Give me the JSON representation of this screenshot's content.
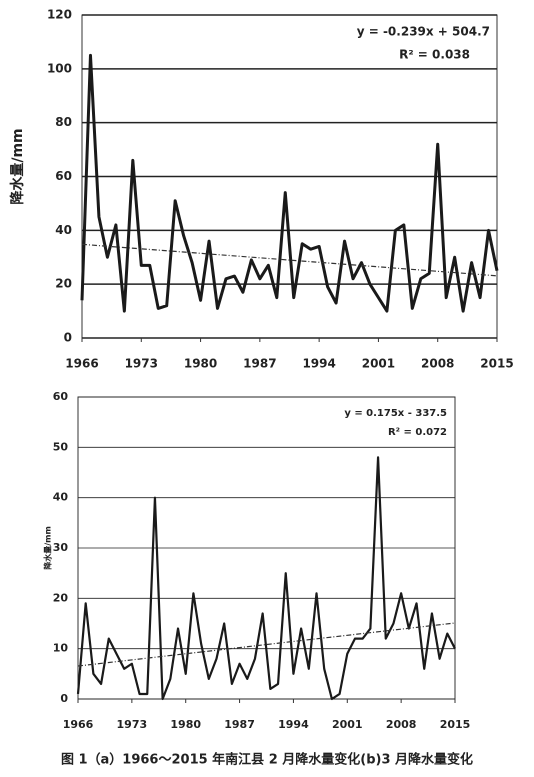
{
  "chart_data": [
    {
      "type": "line",
      "y_label": "降水量/mm",
      "x": [
        1966,
        1967,
        1968,
        1969,
        1970,
        1971,
        1972,
        1973,
        1974,
        1975,
        1976,
        1977,
        1978,
        1979,
        1980,
        1981,
        1982,
        1983,
        1984,
        1985,
        1986,
        1987,
        1988,
        1989,
        1990,
        1991,
        1992,
        1993,
        1994,
        1995,
        1996,
        1997,
        1998,
        1999,
        2000,
        2001,
        2002,
        2003,
        2004,
        2005,
        2006,
        2007,
        2008,
        2009,
        2010,
        2011,
        2012,
        2013,
        2014,
        2015
      ],
      "values": [
        14,
        105,
        45,
        30,
        42,
        10,
        66,
        27,
        27,
        11,
        12,
        51,
        38,
        28,
        14,
        36,
        11,
        22,
        23,
        17,
        29,
        22,
        27,
        15,
        54,
        15,
        35,
        33,
        34,
        19,
        13,
        36,
        22,
        28,
        20,
        15,
        10,
        40,
        42,
        11,
        22,
        24,
        72,
        15,
        30,
        10,
        28,
        15,
        40,
        25
      ],
      "color": "#1a1a1a",
      "trend": {
        "x": [
          1966,
          2015
        ],
        "values": [
          34.8,
          23.1
        ]
      },
      "equation": "y = -0.239x + 504.7",
      "r_squared": "R² = 0.038",
      "xlim": [
        1966,
        2015
      ],
      "xticks": [
        1966,
        1973,
        1980,
        1987,
        1994,
        2001,
        2008,
        2015
      ],
      "ylim": [
        0,
        120
      ],
      "yticks": [
        0,
        20,
        40,
        60,
        80,
        100,
        120
      ],
      "grid": true
    },
    {
      "type": "line",
      "y_label": "降水量/mm",
      "x": [
        1966,
        1967,
        1968,
        1969,
        1970,
        1971,
        1972,
        1973,
        1974,
        1975,
        1976,
        1977,
        1978,
        1979,
        1980,
        1981,
        1982,
        1983,
        1984,
        1985,
        1986,
        1987,
        1988,
        1989,
        1990,
        1991,
        1992,
        1993,
        1994,
        1995,
        1996,
        1997,
        1998,
        1999,
        2000,
        2001,
        2002,
        2003,
        2004,
        2005,
        2006,
        2007,
        2008,
        2009,
        2010,
        2011,
        2012,
        2013,
        2014,
        2015
      ],
      "values": [
        1,
        19,
        5,
        3,
        12,
        9,
        6,
        7,
        1,
        1,
        40,
        0,
        4,
        14,
        5,
        21,
        11,
        4,
        8,
        15,
        3,
        7,
        4,
        8,
        17,
        2,
        3,
        25,
        5,
        14,
        6,
        21,
        6,
        0,
        1,
        9,
        12,
        12,
        14,
        48,
        12,
        15,
        21,
        14,
        19,
        6,
        17,
        8,
        13,
        10
      ],
      "color": "#1a1a1a",
      "trend": {
        "x": [
          1966,
          2015
        ],
        "values": [
          6.55,
          15.1
        ]
      },
      "equation": "y = 0.175x - 337.5",
      "r_squared": "R² = 0.072",
      "xlim": [
        1966,
        2015
      ],
      "xticks": [
        1966,
        1973,
        1980,
        1987,
        1994,
        2001,
        2008,
        2015
      ],
      "ylim": [
        0,
        60
      ],
      "yticks": [
        0,
        10,
        20,
        30,
        40,
        50,
        60
      ],
      "grid": true
    }
  ],
  "caption": "图 1（a）1966～2015 年南江县 2 月降水量变化(b)3 月降水量变化"
}
